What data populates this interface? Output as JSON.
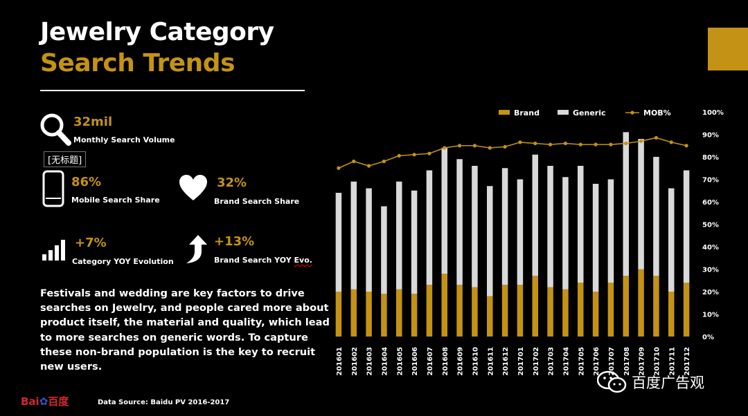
{
  "header": {
    "title_line1": "Jewelry Category",
    "title_line2": "Search Trends"
  },
  "colors": {
    "accent_gold": "#c49315",
    "generic_gray": "#d9d9d9",
    "background": "#000000"
  },
  "stats": {
    "volume": {
      "value": "32mil",
      "label": "Monthly Search Volume",
      "icon": "search-icon"
    },
    "mobile": {
      "value": "86%",
      "label": "Mobile Search Share",
      "icon": "smartphone-icon"
    },
    "brand_share": {
      "value": "32%",
      "label": "Brand Search Share",
      "icon": "heart-icon"
    },
    "category_yoy": {
      "value": "+7%",
      "label": "Category YOY Evolution",
      "icon": "signal-bars-icon"
    },
    "brand_yoy": {
      "value": "+13%",
      "label_main": "Brand Search YOY ",
      "label_squiggle": "Evo.",
      "icon": "turn-up-arrow-icon"
    }
  },
  "overlay_tag": "[无标题]",
  "paragraph": "Festivals and wedding are key factors to drive searches on Jewelry, and people cared more about product itself, the material and quality, which lead to more searches on generic words. To capture these non-brand population is the key to recruit new users.",
  "footer": {
    "logo_bai": "Bai",
    "logo_du": "百度",
    "source": "Data Source: Baidu PV 2016-2017",
    "wechat_name": "百度广告观"
  },
  "chart_data": {
    "type": "bar",
    "stacked": true,
    "categories": [
      "201601",
      "201602",
      "201603",
      "201604",
      "201605",
      "201606",
      "201607",
      "201608",
      "201609",
      "201610",
      "201611",
      "201612",
      "201701",
      "201702",
      "201703",
      "201704",
      "201705",
      "201706",
      "201707",
      "201708",
      "201709",
      "201710",
      "201711",
      "201712"
    ],
    "series": [
      {
        "name": "Brand",
        "kind": "bar",
        "color": "#c49315",
        "values": [
          20,
          21,
          20,
          19,
          21,
          19,
          23,
          28,
          23,
          22,
          18,
          23,
          23,
          27,
          22,
          21,
          24,
          20,
          24,
          27,
          30,
          27,
          20,
          24
        ]
      },
      {
        "name": "Generic",
        "kind": "bar",
        "color": "#d9d9d9",
        "values": [
          44,
          48,
          46,
          39,
          48,
          46,
          51,
          56,
          56,
          54,
          49,
          52,
          47,
          54,
          54,
          50,
          52,
          48,
          46,
          64,
          58,
          53,
          46,
          50
        ]
      },
      {
        "name": "MOB%",
        "kind": "line",
        "color": "#c49315",
        "values": [
          75,
          78,
          76,
          78,
          80.5,
          81,
          81.5,
          84,
          85,
          85,
          84,
          84.5,
          86.5,
          86,
          85.5,
          86,
          85.5,
          85.5,
          85.5,
          86,
          87,
          88.5,
          86.5,
          85
        ]
      }
    ],
    "ylim": [
      0,
      100
    ],
    "yticks": [
      "0%",
      "10%",
      "20%",
      "30%",
      "40%",
      "50%",
      "60%",
      "70%",
      "80%",
      "90%",
      "100%"
    ],
    "legend": [
      "Brand",
      "Generic",
      "MOB%"
    ],
    "legend_position": "top"
  }
}
